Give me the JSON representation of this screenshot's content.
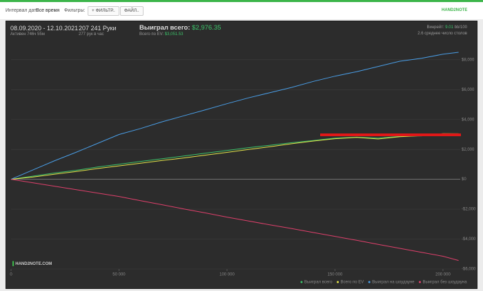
{
  "toolbar": {
    "date_label": "Интервал дат:",
    "date_value": "Все время",
    "filters_label": "Фильтры:",
    "filter_button": "ФИЛЬТР..",
    "file_button": "ФАЙЛ..",
    "logo": "HAND2NOTE"
  },
  "header": {
    "dates": "08.09.2020 - 12.10.2021",
    "active": "Активен 746ч 55м",
    "hands": "207 241 Руки",
    "hands_per_hour": "277 рук в час",
    "won_label": "Выиграл всего:",
    "won_value": "$2,976.35",
    "ev_label": "Всего по EV:",
    "ev_value": "$3,051.53",
    "winrate_label": "Винрейт:",
    "winrate_value": "9.01",
    "winrate_unit": "bb/100",
    "tables": "2.6 среднее число столов"
  },
  "watermark": "HAND2NOTE.COM",
  "chart_data": {
    "type": "line",
    "x": [
      0,
      10000,
      20000,
      30000,
      40000,
      50000,
      60000,
      70000,
      80000,
      90000,
      100000,
      110000,
      120000,
      130000,
      140000,
      150000,
      160000,
      170000,
      180000,
      190000,
      200000,
      207241
    ],
    "series": [
      {
        "name": "Выиграл всего",
        "color": "#3cc26a",
        "values": [
          0,
          210,
          420,
          600,
          820,
          1010,
          1200,
          1380,
          1560,
          1750,
          1930,
          2120,
          2280,
          2450,
          2600,
          2760,
          2820,
          2760,
          2870,
          2900,
          3010,
          2976.35
        ]
      },
      {
        "name": "Всего по EV",
        "color": "#e4e64a",
        "values": [
          0,
          150,
          340,
          520,
          720,
          900,
          1080,
          1260,
          1430,
          1620,
          1800,
          2000,
          2180,
          2380,
          2560,
          2720,
          2800,
          2700,
          2850,
          2920,
          3060,
          3051.53
        ]
      },
      {
        "name": "Выиграл на шоудауне",
        "color": "#4a9fe8",
        "values": [
          0,
          620,
          1230,
          1800,
          2400,
          3000,
          3400,
          3850,
          4250,
          4650,
          5060,
          5450,
          5800,
          6150,
          6550,
          6900,
          7200,
          7550,
          7900,
          8100,
          8370,
          8500
        ]
      },
      {
        "name": "Выиграл без шоудауна",
        "color": "#e0406c",
        "values": [
          0,
          -230,
          -460,
          -690,
          -920,
          -1150,
          -1430,
          -1700,
          -1980,
          -2250,
          -2530,
          -2790,
          -3050,
          -3300,
          -3560,
          -3820,
          -4080,
          -4350,
          -4620,
          -4880,
          -5150,
          -5430
        ]
      }
    ],
    "xlim": [
      0,
      208000
    ],
    "xticks": [
      0,
      {
        "value": 50000,
        "label": "50 000"
      },
      {
        "value": 100000,
        "label": "100 000"
      },
      {
        "value": 150000,
        "label": "150 000"
      },
      {
        "value": 200000,
        "label": "200 000"
      }
    ],
    "ylim": [
      -6000,
      9650
    ],
    "yticks": [
      {
        "value": -6000,
        "label": "-$6,000"
      },
      {
        "value": -4000,
        "label": "-$4,000"
      },
      {
        "value": -2000,
        "label": "-$2,000"
      },
      {
        "value": 0,
        "label": "$0"
      },
      {
        "value": 2000,
        "label": "$2,000"
      },
      {
        "value": 4000,
        "label": "$4,000"
      },
      {
        "value": 6000,
        "label": "$6,000"
      },
      {
        "value": 8000,
        "label": "$8,000"
      }
    ],
    "grid": true,
    "legend": "bottom-right"
  }
}
